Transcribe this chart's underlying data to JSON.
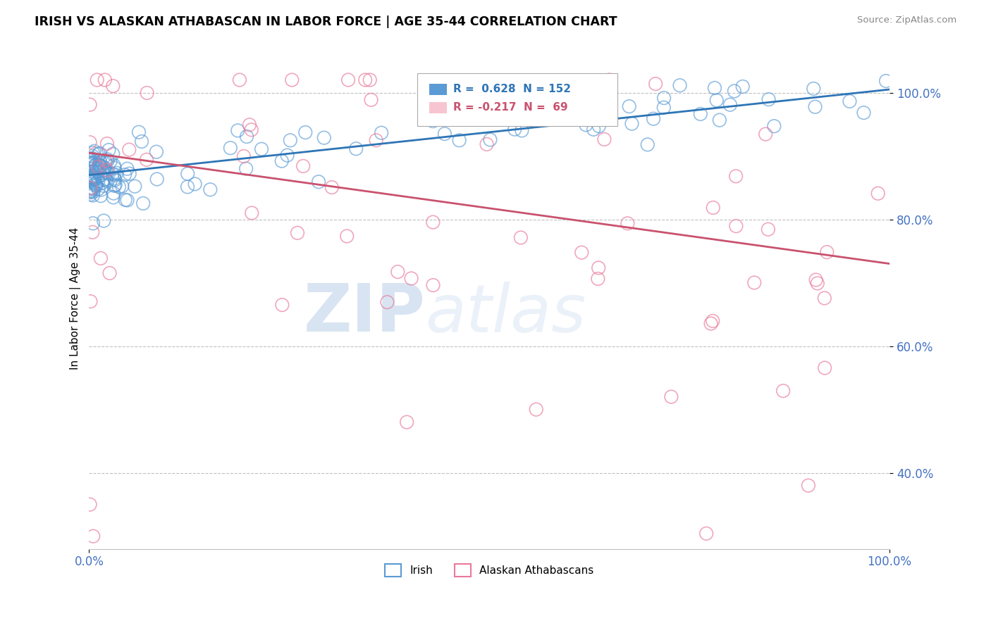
{
  "title": "IRISH VS ALASKAN ATHABASCAN IN LABOR FORCE | AGE 35-44 CORRELATION CHART",
  "source": "Source: ZipAtlas.com",
  "ylabel": "In Labor Force | Age 35-44",
  "xlabel": "",
  "xlim": [
    0.0,
    1.0
  ],
  "ylim": [
    0.28,
    1.07
  ],
  "yticks": [
    0.4,
    0.6,
    0.8,
    1.0
  ],
  "ytick_labels": [
    "40.0%",
    "60.0%",
    "80.0%",
    "100.0%"
  ],
  "blue_color": "#5b9bd5",
  "pink_color": "#f4a5b8",
  "blue_edge_color": "#5b9bd5",
  "pink_edge_color": "#e8799a",
  "blue_line_color": "#2e75b6",
  "pink_line_color": "#c9526e",
  "tick_color": "#4472c4",
  "background_color": "#ffffff",
  "grid_color": "#c0c0c0",
  "legend_R_blue": "0.628",
  "legend_N_blue": "152",
  "legend_R_pink": "-0.217",
  "legend_N_pink": "69",
  "legend_label_blue": "Irish",
  "legend_label_pink": "Alaskan Athabascans",
  "watermark_zip": "ZIP",
  "watermark_atlas": "atlas",
  "blue_trend_start": 0.87,
  "blue_trend_end": 1.005,
  "pink_trend_start": 0.905,
  "pink_trend_end": 0.73
}
